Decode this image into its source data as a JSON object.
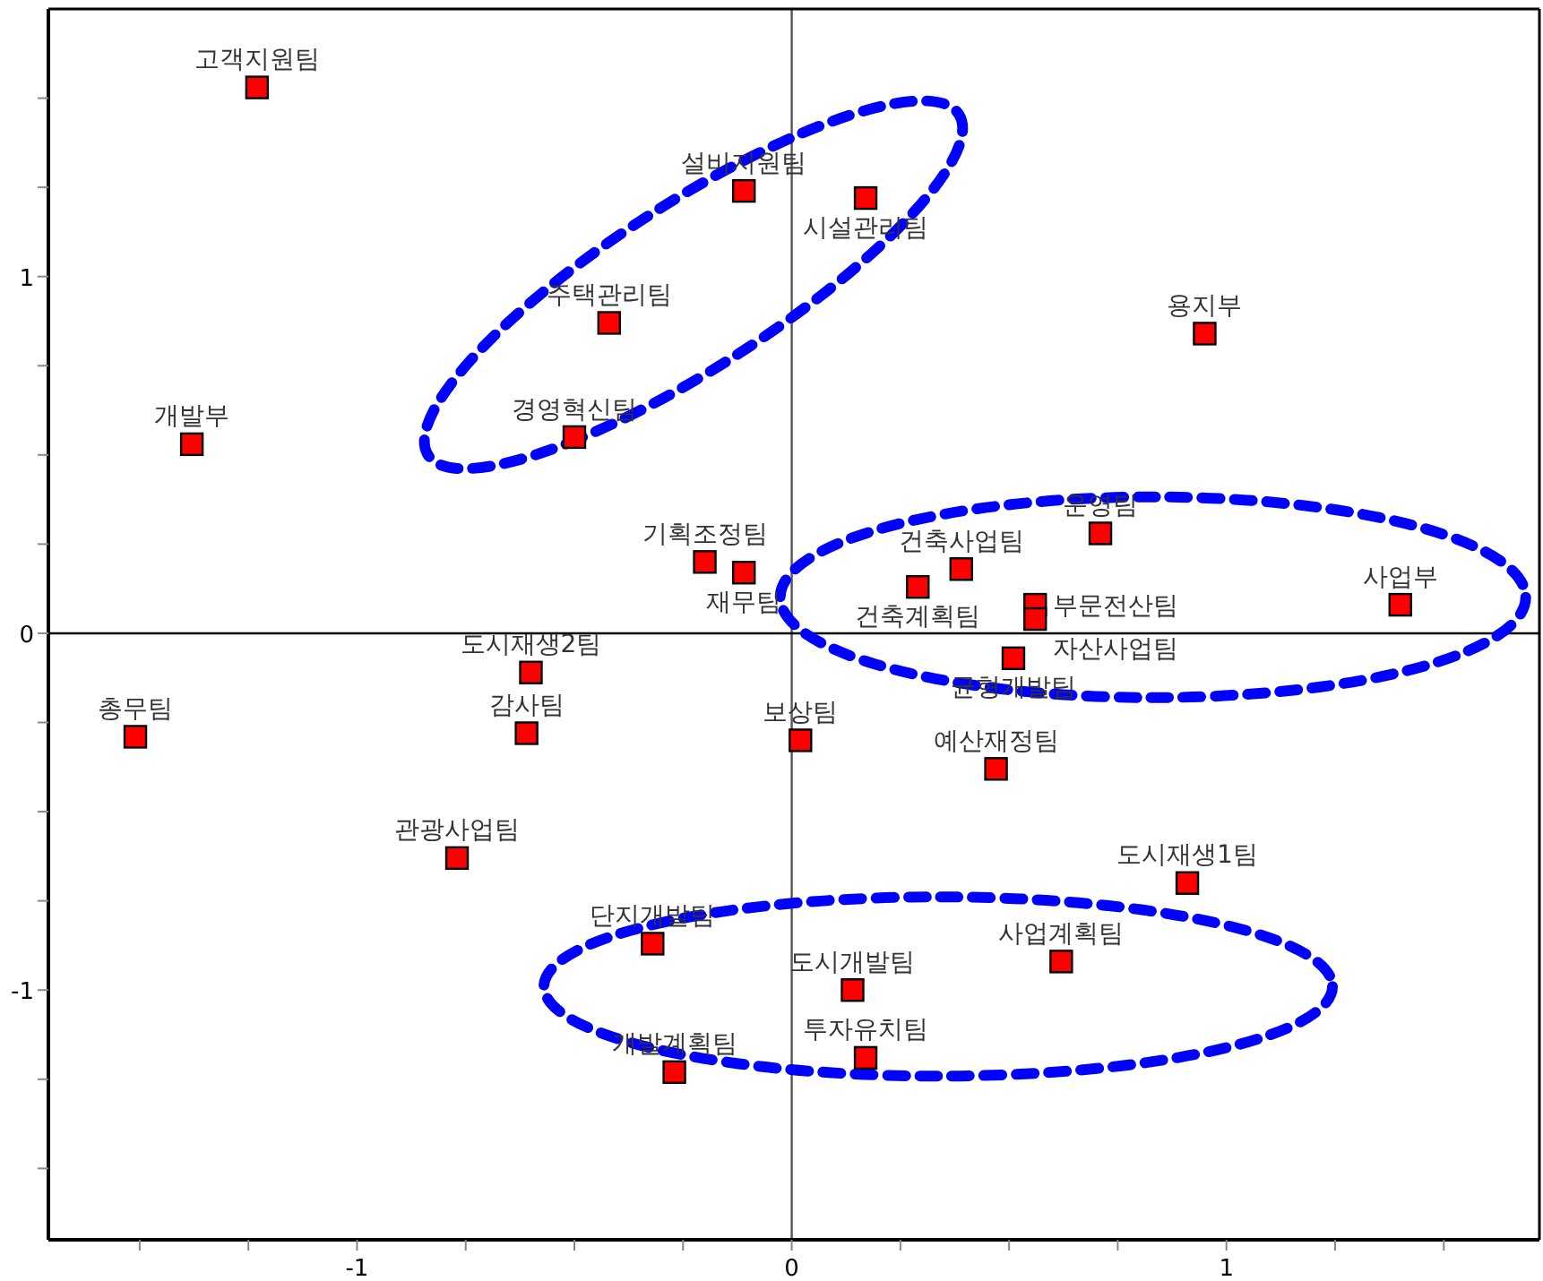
{
  "chart_data": {
    "type": "scatter",
    "marker": "square",
    "grid": false,
    "xlim": [
      -1.71,
      1.72
    ],
    "ylim": [
      -1.7,
      1.75
    ],
    "xticks": [
      {
        "value": -1.5,
        "label": null
      },
      {
        "value": -1.25,
        "label": null
      },
      -1,
      {
        "value": -0.75,
        "label": null
      },
      {
        "value": -0.5,
        "label": null
      },
      {
        "value": -0.25,
        "label": null
      },
      0,
      {
        "value": 0.25,
        "label": null
      },
      {
        "value": 0.5,
        "label": null
      },
      {
        "value": 0.75,
        "label": null
      },
      1,
      {
        "value": 1.25,
        "label": null
      },
      {
        "value": 1.5,
        "label": null
      }
    ],
    "yticks": [
      {
        "value": -1.5,
        "label": null
      },
      {
        "value": -1.25,
        "label": null
      },
      -1,
      {
        "value": -0.75,
        "label": null
      },
      {
        "value": -0.5,
        "label": null
      },
      {
        "value": -0.25,
        "label": null
      },
      0,
      {
        "value": 0.25,
        "label": null
      },
      {
        "value": 0.5,
        "label": null
      },
      {
        "value": 0.75,
        "label": null
      },
      1,
      {
        "value": 1.25,
        "label": null
      },
      {
        "value": 1.5,
        "label": null
      }
    ],
    "ref_lines": [
      {
        "axis": "x",
        "value": 0,
        "label": null,
        "color": "#555555"
      },
      {
        "axis": "y",
        "value": 0,
        "label": null,
        "color": "#000000"
      }
    ],
    "series": [
      {
        "name": "고객지원팀",
        "color": "#ff0000",
        "x": [
          -1.23
        ],
        "values": [
          1.53
        ]
      },
      {
        "name": "설비지원팀",
        "color": "#ff0000",
        "x": [
          -0.11
        ],
        "values": [
          1.24
        ]
      },
      {
        "name": "시설관리팀",
        "color": "#ff0000",
        "x": [
          0.17
        ],
        "values": [
          1.22
        ]
      },
      {
        "name": "주택관리팀",
        "color": "#ff0000",
        "x": [
          -0.42
        ],
        "values": [
          0.87
        ]
      },
      {
        "name": "용지부",
        "color": "#ff0000",
        "x": [
          0.95
        ],
        "values": [
          0.84
        ]
      },
      {
        "name": "개발부",
        "color": "#ff0000",
        "x": [
          -1.38
        ],
        "values": [
          0.53
        ]
      },
      {
        "name": "경영혁신팀",
        "color": "#ff0000",
        "x": [
          -0.5
        ],
        "values": [
          0.55
        ]
      },
      {
        "name": "기획조정팀",
        "color": "#ff0000",
        "x": [
          -0.2
        ],
        "values": [
          0.2
        ]
      },
      {
        "name": "재무팀",
        "color": "#ff0000",
        "x": [
          -0.11
        ],
        "values": [
          0.17
        ]
      },
      {
        "name": "운영팀",
        "color": "#ff0000",
        "x": [
          0.71
        ],
        "values": [
          0.28
        ]
      },
      {
        "name": "건축사업팀",
        "color": "#ff0000",
        "x": [
          0.39
        ],
        "values": [
          0.18
        ]
      },
      {
        "name": "건축계획팀",
        "color": "#ff0000",
        "x": [
          0.29
        ],
        "values": [
          0.13
        ]
      },
      {
        "name": "부문전산팀",
        "color": "#ff0000",
        "x": [
          0.56
        ],
        "values": [
          0.08
        ]
      },
      {
        "name": "자산사업팀",
        "color": "#ff0000",
        "x": [
          0.56
        ],
        "values": [
          0.04
        ]
      },
      {
        "name": "균형개발팀",
        "color": "#ff0000",
        "x": [
          0.51
        ],
        "values": [
          -0.07
        ]
      },
      {
        "name": "사업부",
        "color": "#ff0000",
        "x": [
          1.4
        ],
        "values": [
          0.08
        ]
      },
      {
        "name": "도시재생2팀",
        "color": "#ff0000",
        "x": [
          -0.6
        ],
        "values": [
          -0.11
        ]
      },
      {
        "name": "총무팀",
        "color": "#ff0000",
        "x": [
          -1.51
        ],
        "values": [
          -0.29
        ]
      },
      {
        "name": "감사팀",
        "color": "#ff0000",
        "x": [
          -0.61
        ],
        "values": [
          -0.28
        ]
      },
      {
        "name": "보상팀",
        "color": "#ff0000",
        "x": [
          0.02
        ],
        "values": [
          -0.3
        ]
      },
      {
        "name": "예산재정팀",
        "color": "#ff0000",
        "x": [
          0.47
        ],
        "values": [
          -0.38
        ]
      },
      {
        "name": "관광사업팀",
        "color": "#ff0000",
        "x": [
          -0.77
        ],
        "values": [
          -0.63
        ]
      },
      {
        "name": "도시재생1팀",
        "color": "#ff0000",
        "x": [
          0.91
        ],
        "values": [
          -0.7
        ]
      },
      {
        "name": "단지개발팀",
        "color": "#ff0000",
        "x": [
          -0.32
        ],
        "values": [
          -0.87
        ]
      },
      {
        "name": "사업계획팀",
        "color": "#ff0000",
        "x": [
          0.62
        ],
        "values": [
          -0.92
        ]
      },
      {
        "name": "도시개발팀",
        "color": "#ff0000",
        "x": [
          0.14
        ],
        "values": [
          -1.0
        ]
      },
      {
        "name": "투자유치팀",
        "color": "#ff0000",
        "x": [
          0.17
        ],
        "values": [
          -1.19
        ]
      },
      {
        "name": "개발계획팀",
        "color": "#ff0000",
        "x": [
          -0.27
        ],
        "values": [
          -1.23
        ]
      }
    ]
  }
}
